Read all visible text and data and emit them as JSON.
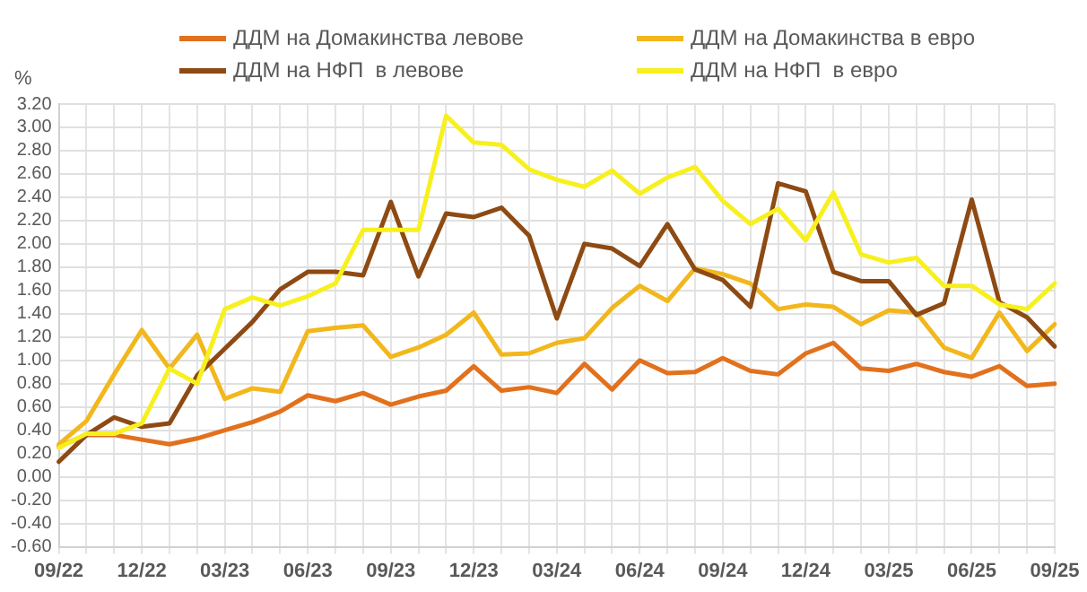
{
  "chart_data": {
    "type": "line",
    "ylabel": "%",
    "categories": [
      "09/22",
      null,
      null,
      "12/22",
      null,
      null,
      "03/23",
      null,
      null,
      "06/23",
      null,
      null,
      "09/23",
      null,
      null,
      "12/23",
      null,
      null,
      "03/24",
      null,
      null,
      "06/24",
      null,
      null,
      "09/24",
      null,
      null,
      "12/24",
      null,
      null,
      "03/25",
      null,
      null,
      "06/25",
      null,
      null,
      "09/25"
    ],
    "series": [
      {
        "name": "ДДМ на Домакинства левове",
        "color": "#e2711d",
        "values": [
          0.26,
          0.36,
          0.36,
          0.32,
          0.28,
          0.33,
          0.4,
          0.47,
          0.56,
          0.7,
          0.65,
          0.72,
          0.62,
          0.69,
          0.74,
          0.95,
          0.74,
          0.77,
          0.72,
          0.97,
          0.75,
          1.0,
          0.89,
          0.9,
          1.02,
          0.91,
          0.88,
          1.06,
          1.15,
          0.93,
          0.91,
          0.97,
          0.9,
          0.86,
          0.95,
          0.78,
          0.8
        ]
      },
      {
        "name": "ДДМ на Домакинства в евро",
        "color": "#f2b71c",
        "values": [
          0.28,
          0.48,
          0.88,
          1.26,
          0.93,
          1.22,
          0.67,
          0.76,
          0.73,
          1.25,
          1.28,
          1.3,
          1.03,
          1.11,
          1.22,
          1.41,
          1.05,
          1.06,
          1.15,
          1.19,
          1.45,
          1.64,
          1.51,
          1.79,
          1.74,
          1.66,
          1.44,
          1.48,
          1.46,
          1.31,
          1.43,
          1.41,
          1.11,
          1.02,
          1.41,
          1.08,
          1.31
        ]
      },
      {
        "name": "ДДМ на НФП  в левове",
        "color": "#8e4a13",
        "values": [
          0.13,
          0.36,
          0.51,
          0.43,
          0.46,
          0.87,
          1.1,
          1.33,
          1.61,
          1.76,
          1.76,
          1.73,
          2.36,
          1.72,
          2.26,
          2.23,
          2.31,
          2.07,
          1.36,
          2.0,
          1.96,
          1.81,
          2.17,
          1.78,
          1.69,
          1.46,
          2.52,
          2.45,
          1.76,
          1.68,
          1.68,
          1.39,
          1.49,
          2.38,
          1.5,
          1.37,
          1.12
        ]
      },
      {
        "name": "ДДМ на НФП  в евро",
        "color": "#f7f01e",
        "values": [
          0.25,
          0.37,
          0.37,
          0.46,
          0.93,
          0.8,
          1.44,
          1.54,
          1.47,
          1.55,
          1.66,
          2.12,
          2.12,
          2.12,
          3.1,
          2.87,
          2.85,
          2.64,
          2.55,
          2.49,
          2.63,
          2.43,
          2.57,
          2.66,
          2.37,
          2.17,
          2.3,
          2.03,
          2.44,
          1.91,
          1.84,
          1.88,
          1.64,
          1.64,
          1.48,
          1.44,
          1.66
        ]
      }
    ],
    "ylim": [
      -0.6,
      3.2
    ],
    "yticks": [
      {
        "value": -0.6,
        "label": "-0.60"
      },
      {
        "value": -0.4,
        "label": "-0.40"
      },
      {
        "value": -0.2,
        "label": "-0.20"
      },
      {
        "value": 0,
        "label": "0.00"
      },
      {
        "value": 0.2,
        "label": "0.20"
      },
      {
        "value": 0.4,
        "label": "0.40"
      },
      {
        "value": 0.6,
        "label": "0.60"
      },
      {
        "value": 0.8,
        "label": "0.80"
      },
      {
        "value": 1,
        "label": "1.00"
      },
      {
        "value": 1.2,
        "label": "1.20"
      },
      {
        "value": 1.4,
        "label": "1.40"
      },
      {
        "value": 1.6,
        "label": "1.60"
      },
      {
        "value": 1.8,
        "label": "1.80"
      },
      {
        "value": 2,
        "label": "2.00"
      },
      {
        "value": 2.2,
        "label": "2.20"
      },
      {
        "value": 2.4,
        "label": "2.40"
      },
      {
        "value": 2.6,
        "label": "2.60"
      },
      {
        "value": 2.8,
        "label": "2.80"
      },
      {
        "value": 3,
        "label": "3.00"
      },
      {
        "value": 3.2,
        "label": "3.20"
      }
    ],
    "grid": true,
    "legend": "top",
    "marker": "none",
    "line_style": "solid"
  }
}
